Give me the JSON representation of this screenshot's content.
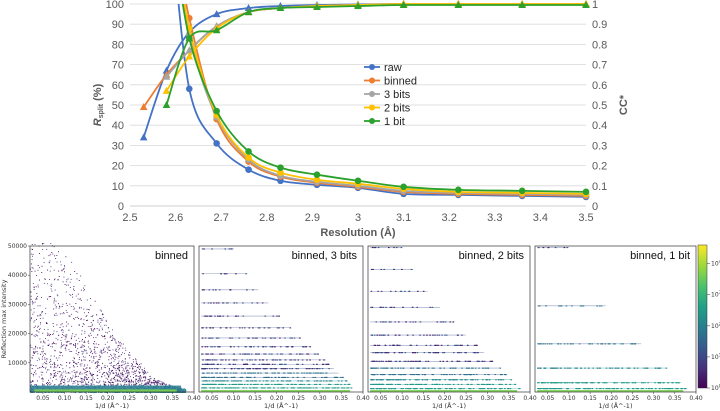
{
  "chart_data": [
    {
      "type": "line",
      "title": "",
      "xlabel": "Resolution (Å)",
      "ylabel_left": "R",
      "ylabel_left_sub": "split",
      "ylabel_left_suffix": " (%)",
      "ylabel_right": "CC*",
      "xlim": [
        2.5,
        3.5
      ],
      "ylim_left": [
        0,
        100
      ],
      "ylim_right": [
        0,
        1
      ],
      "x_ticks": [
        "2.5",
        "2.6",
        "2.7",
        "2.8",
        "2.9",
        "3",
        "3.1",
        "3.2",
        "3.3",
        "3.4",
        "3.5"
      ],
      "y_ticks_left": [
        "0",
        "10",
        "20",
        "30",
        "40",
        "50",
        "60",
        "70",
        "80",
        "90",
        "100"
      ],
      "y_ticks_right": [
        "0",
        "0.1",
        "0.2",
        "0.3",
        "0.4",
        "0.5",
        "0.6",
        "0.7",
        "0.8",
        "0.9",
        "1"
      ],
      "grid": true,
      "legend": "center-right",
      "series": [
        {
          "name": "raw",
          "color": "#4472C4",
          "rsplit": {
            "x": [
              2.63,
              2.69,
              2.76,
              2.83,
              2.91,
              3.0,
              3.1,
              3.22,
              3.36,
              3.5
            ],
            "y": [
              58,
              31,
              18,
              12.5,
              10.5,
              9,
              6,
              5.5,
              5,
              4.5
            ]
          },
          "ccstar": {
            "x": [
              2.53,
              2.58,
              2.63,
              2.69,
              2.76,
              2.83,
              2.91,
              3.0,
              3.1,
              3.22,
              3.36,
              3.5
            ],
            "y": [
              0.34,
              0.67,
              0.86,
              0.95,
              0.98,
              0.99,
              0.995,
              0.998,
              1.0,
              1.0,
              1.0,
              1.0
            ]
          }
        },
        {
          "name": "binned",
          "color": "#ED7D31",
          "rsplit": {
            "x": [
              2.63,
              2.69,
              2.76,
              2.83,
              2.91,
              3.0,
              3.1,
              3.22,
              3.36,
              3.5
            ],
            "y": [
              93,
              43,
              22,
              14.5,
              11.5,
              9.5,
              7,
              6,
              5.5,
              5
            ]
          },
          "ccstar": {
            "x": [
              2.53,
              2.58,
              2.63,
              2.69,
              2.76,
              2.83,
              2.91,
              3.0,
              3.1,
              3.22,
              3.36,
              3.5
            ],
            "y": [
              0.49,
              0.65,
              0.77,
              0.89,
              0.96,
              0.98,
              0.99,
              0.995,
              1.0,
              1.0,
              1.0,
              1.0
            ]
          }
        },
        {
          "name": "3 bits",
          "color": "#A5A5A5",
          "rsplit": {
            "x": [
              2.63,
              2.69,
              2.76,
              2.83,
              2.91,
              3.0,
              3.1,
              3.22,
              3.36,
              3.5
            ],
            "y": [
              85,
              44,
              23,
              15,
              12,
              10,
              7.5,
              6.5,
              6,
              5.5
            ]
          },
          "ccstar": {
            "x": [
              2.58,
              2.63,
              2.69,
              2.76,
              2.83,
              2.91,
              3.0,
              3.1,
              3.22,
              3.36,
              3.5
            ],
            "y": [
              0.64,
              0.77,
              0.89,
              0.96,
              0.98,
              0.99,
              0.995,
              1.0,
              1.0,
              1.0,
              1.0
            ]
          }
        },
        {
          "name": "2 bits",
          "color": "#FFC000",
          "rsplit": {
            "x": [
              2.63,
              2.69,
              2.76,
              2.83,
              2.91,
              3.0,
              3.1,
              3.22,
              3.36,
              3.5
            ],
            "y": [
              88,
              45,
              24,
              16.5,
              13,
              11,
              8.5,
              7,
              6.5,
              6
            ]
          },
          "ccstar": {
            "x": [
              2.58,
              2.63,
              2.69,
              2.76,
              2.83,
              2.91,
              3.0,
              3.1,
              3.22,
              3.36,
              3.5
            ],
            "y": [
              0.57,
              0.74,
              0.88,
              0.96,
              0.98,
              0.99,
              0.995,
              1.0,
              1.0,
              1.0,
              1.0
            ]
          }
        },
        {
          "name": "1 bit",
          "color": "#2CA02C",
          "rsplit": {
            "x": [
              2.63,
              2.69,
              2.76,
              2.83,
              2.91,
              3.0,
              3.1,
              3.22,
              3.36,
              3.5
            ],
            "y": [
              83,
              47,
              27,
              19,
              15.5,
              12.5,
              9.5,
              8,
              7.5,
              7
            ]
          },
          "ccstar": {
            "x": [
              2.58,
              2.63,
              2.69,
              2.76,
              2.83,
              2.91,
              3.0,
              3.1,
              3.22,
              3.36,
              3.5
            ],
            "y": [
              0.5,
              0.83,
              0.87,
              0.96,
              0.98,
              0.985,
              0.99,
              0.995,
              0.995,
              0.995,
              0.995
            ]
          }
        }
      ]
    },
    {
      "type": "heatmap",
      "ylabel": "Reflection max intensity",
      "xlabel": "1/d (Å^-1)",
      "xlim": [
        0.02,
        0.4
      ],
      "ylim": [
        0,
        50000
      ],
      "x_ticks": [
        "0.05",
        "0.10",
        "0.15",
        "0.20",
        "0.25",
        "0.30",
        "0.35",
        "0.40"
      ],
      "y_ticks": [
        "10000",
        "20000",
        "30000",
        "40000",
        "50000"
      ],
      "colorbar_ticks": [
        "10^0",
        "10^1",
        "10^2",
        "10^3",
        "10^4"
      ],
      "colorbar_labels": [
        {
          "base": "10",
          "exp": "0"
        },
        {
          "base": "10",
          "exp": "1"
        },
        {
          "base": "10",
          "exp": "2"
        },
        {
          "base": "10",
          "exp": "3"
        },
        {
          "base": "10",
          "exp": "4"
        }
      ],
      "colorbar_scale": "log",
      "panels": [
        {
          "title": "binned",
          "mode": "continuous"
        },
        {
          "title": "binned, 3 bits",
          "mode": "levels",
          "levels": [
            1400,
            2600,
            3800,
            5000,
            6500,
            8000,
            9500,
            11000,
            13000,
            15500,
            18500,
            22000,
            26000,
            30500,
            35000,
            40500,
            49000
          ]
        },
        {
          "title": "binned, 2 bits",
          "mode": "levels",
          "levels": [
            1200,
            2600,
            4200,
            6000,
            8200,
            10500,
            13500,
            16000,
            19500,
            24000,
            29000,
            34500,
            42000,
            49500
          ]
        },
        {
          "title": "binned, 1 bit",
          "mode": "levels",
          "levels": [
            1200,
            3200,
            8200,
            16500,
            29500,
            49500
          ]
        }
      ]
    }
  ]
}
